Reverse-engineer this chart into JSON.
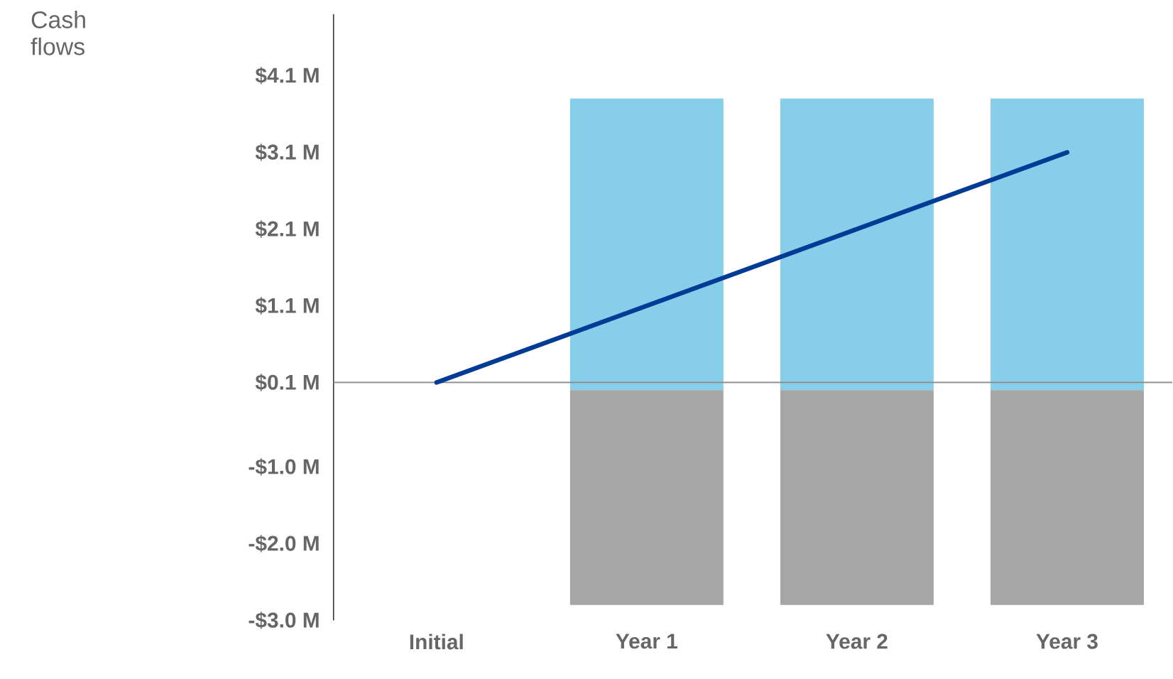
{
  "chart_data": {
    "type": "bar",
    "annotations": [
      "Cash flows"
    ],
    "categories": [
      "Initial",
      "Year 1",
      "Year 2",
      "Year 3"
    ],
    "stacked": true,
    "series": [
      {
        "color": "#87ceeb",
        "values": [
          null,
          3.8,
          3.8,
          3.8
        ]
      },
      {
        "color": "#a6a6a6",
        "values": [
          null,
          -2.8,
          -2.8,
          -2.8
        ]
      },
      {
        "type": "line",
        "color": "#003c96",
        "values": [
          0.1,
          1.1,
          2.1,
          3.1
        ]
      }
    ],
    "ylim": [
      -3.0,
      4.9
    ],
    "yticks": [
      {
        "value": 4.1,
        "label": "$4.1 M"
      },
      {
        "value": 3.1,
        "label": "$3.1 M"
      },
      {
        "value": 2.1,
        "label": "$2.1 M"
      },
      {
        "value": 1.1,
        "label": "$1.1 M"
      },
      {
        "value": 0.1,
        "label": "$0.1 M"
      },
      {
        "value": -1.0,
        "label": "-$1.0 M"
      },
      {
        "value": -2.0,
        "label": "-$2.0 M"
      },
      {
        "value": -3.0,
        "label": "-$3.0 M"
      }
    ],
    "ref_lines": [
      {
        "axis": "y",
        "value": 0.1,
        "color": "#8c8c8c"
      }
    ],
    "marker": "none"
  }
}
